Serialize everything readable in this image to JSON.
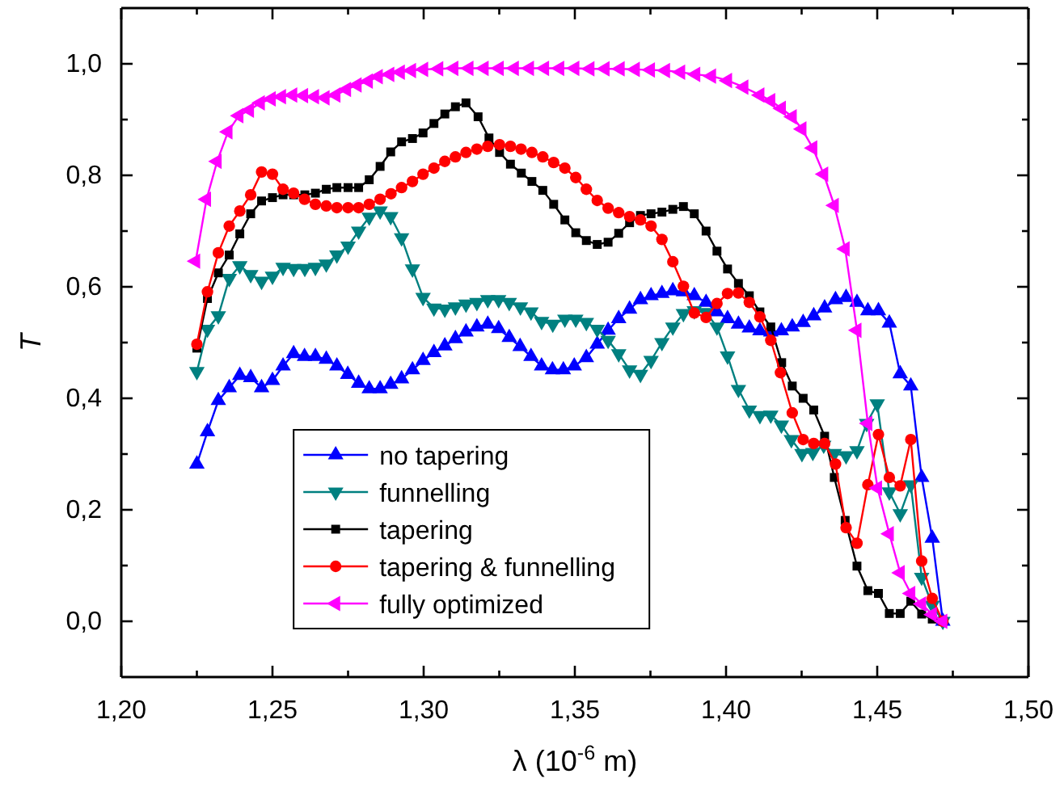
{
  "chart_data": {
    "type": "line",
    "xlabel": "λ  (10$^{-6}$ m)",
    "ylabel": "T",
    "xlim": [
      1.2,
      1.5
    ],
    "ylim": [
      -0.1,
      1.1
    ],
    "xticks": [
      {
        "value": 1.2,
        "label": "1,20"
      },
      {
        "value": 1.225,
        "label": null
      },
      {
        "value": 1.25,
        "label": "1,25"
      },
      {
        "value": 1.275,
        "label": null
      },
      {
        "value": 1.3,
        "label": "1,30"
      },
      {
        "value": 1.325,
        "label": null
      },
      {
        "value": 1.35,
        "label": "1,35"
      },
      {
        "value": 1.375,
        "label": null
      },
      {
        "value": 1.4,
        "label": "1,40"
      },
      {
        "value": 1.425,
        "label": null
      },
      {
        "value": 1.45,
        "label": "1,45"
      },
      {
        "value": 1.475,
        "label": null
      },
      {
        "value": 1.5,
        "label": "1,50"
      }
    ],
    "yticks": [
      {
        "value": 0,
        "label": "0,0"
      },
      {
        "value": 0.1,
        "label": null
      },
      {
        "value": 0.2,
        "label": "0,2"
      },
      {
        "value": 0.3,
        "label": null
      },
      {
        "value": 0.4,
        "label": "0,4"
      },
      {
        "value": 0.5,
        "label": null
      },
      {
        "value": 0.6,
        "label": "0,6"
      },
      {
        "value": 0.7,
        "label": null
      },
      {
        "value": 0.8,
        "label": "0,8"
      },
      {
        "value": 0.9,
        "label": null
      },
      {
        "value": 1.0,
        "label": "1,0"
      }
    ],
    "grid": false,
    "legend": "bottom",
    "line_style": "solid",
    "series": [
      {
        "name": "no tapering",
        "color": "#0000ff",
        "marker": "triangle",
        "x": [
          1.225,
          1.2285,
          1.2321,
          1.2357,
          1.2392,
          1.2428,
          1.2464,
          1.25,
          1.2535,
          1.257,
          1.2606,
          1.2642,
          1.2678,
          1.2713,
          1.2749,
          1.2785,
          1.282,
          1.2856,
          1.2891,
          1.2927,
          1.2963,
          1.2998,
          1.3034,
          1.307,
          1.3105,
          1.314,
          1.3176,
          1.3212,
          1.3248,
          1.3283,
          1.3319,
          1.3355,
          1.339,
          1.3426,
          1.3462,
          1.3498,
          1.3538,
          1.3574,
          1.361,
          1.3645,
          1.3681,
          1.3717,
          1.3752,
          1.3788,
          1.3824,
          1.3859,
          1.3895,
          1.3934,
          1.397,
          1.4005,
          1.4041,
          1.4077,
          1.4112,
          1.4148,
          1.4183,
          1.4219,
          1.4255,
          1.429,
          1.4326,
          1.4362,
          1.4397,
          1.4433,
          1.4469,
          1.4504,
          1.454,
          1.4576,
          1.4611,
          1.4647,
          1.4682,
          1.4717
        ],
        "values": [
          0.282,
          0.34,
          0.396,
          0.419,
          0.441,
          0.437,
          0.419,
          0.432,
          0.458,
          0.48,
          0.475,
          0.475,
          0.47,
          0.458,
          0.443,
          0.427,
          0.417,
          0.417,
          0.425,
          0.435,
          0.451,
          0.468,
          0.482,
          0.494,
          0.507,
          0.519,
          0.528,
          0.533,
          0.525,
          0.509,
          0.493,
          0.475,
          0.458,
          0.451,
          0.451,
          0.458,
          0.473,
          0.497,
          0.522,
          0.543,
          0.56,
          0.577,
          0.584,
          0.588,
          0.593,
          0.591,
          0.584,
          0.572,
          0.555,
          0.543,
          0.533,
          0.526,
          0.521,
          0.519,
          0.521,
          0.528,
          0.536,
          0.548,
          0.562,
          0.577,
          0.581,
          0.572,
          0.557,
          0.557,
          0.535,
          0.444,
          0.422,
          0.258,
          0.149,
          0.0
        ]
      },
      {
        "name": "funnelling",
        "color": "#008080",
        "marker": "triangle-down",
        "x": [
          1.225,
          1.2285,
          1.2321,
          1.2357,
          1.2392,
          1.2428,
          1.2464,
          1.25,
          1.2535,
          1.257,
          1.2607,
          1.2642,
          1.2678,
          1.2713,
          1.275,
          1.2785,
          1.282,
          1.2856,
          1.2891,
          1.2927,
          1.2963,
          1.2998,
          1.3034,
          1.307,
          1.3105,
          1.314,
          1.3176,
          1.3212,
          1.3248,
          1.3283,
          1.332,
          1.3355,
          1.339,
          1.3427,
          1.3467,
          1.3503,
          1.3538,
          1.3574,
          1.361,
          1.3645,
          1.3681,
          1.3717,
          1.3752,
          1.3788,
          1.3824,
          1.3859,
          1.3895,
          1.3934,
          1.397,
          1.4005,
          1.4041,
          1.4077,
          1.4112,
          1.4148,
          1.4183,
          1.4216,
          1.4251,
          1.4287,
          1.4323,
          1.4358,
          1.4397,
          1.4433,
          1.4465,
          1.45,
          1.454,
          1.4576,
          1.4611,
          1.4647,
          1.4682,
          1.4717
        ],
        "values": [
          0.448,
          0.524,
          0.548,
          0.615,
          0.638,
          0.622,
          0.61,
          0.619,
          0.635,
          0.633,
          0.633,
          0.635,
          0.641,
          0.657,
          0.673,
          0.7,
          0.725,
          0.736,
          0.726,
          0.688,
          0.632,
          0.581,
          0.562,
          0.56,
          0.564,
          0.569,
          0.572,
          0.577,
          0.577,
          0.572,
          0.564,
          0.555,
          0.538,
          0.533,
          0.542,
          0.542,
          0.536,
          0.524,
          0.504,
          0.48,
          0.451,
          0.443,
          0.468,
          0.5,
          0.528,
          0.552,
          0.557,
          0.554,
          0.528,
          0.476,
          0.416,
          0.379,
          0.369,
          0.37,
          0.352,
          0.326,
          0.301,
          0.303,
          0.316,
          0.301,
          0.297,
          0.306,
          0.355,
          0.39,
          0.232,
          0.193,
          0.245,
          0.079,
          0.029,
          0.0
        ]
      },
      {
        "name": "tapering",
        "color": "#000000",
        "marker": "square",
        "x": [
          1.225,
          1.2285,
          1.2321,
          1.2357,
          1.2392,
          1.2428,
          1.2464,
          1.25,
          1.2535,
          1.257,
          1.2607,
          1.2642,
          1.2678,
          1.2713,
          1.275,
          1.2785,
          1.282,
          1.2856,
          1.2891,
          1.2927,
          1.2963,
          1.2998,
          1.3034,
          1.307,
          1.3105,
          1.314,
          1.318,
          1.3216,
          1.3251,
          1.3287,
          1.3323,
          1.3358,
          1.3394,
          1.343,
          1.3467,
          1.3503,
          1.3538,
          1.3574,
          1.361,
          1.3645,
          1.3681,
          1.3717,
          1.3752,
          1.3788,
          1.3824,
          1.3859,
          1.3895,
          1.3934,
          1.397,
          1.4005,
          1.4041,
          1.4077,
          1.4112,
          1.4148,
          1.4184,
          1.4219,
          1.4255,
          1.429,
          1.4326,
          1.4358,
          1.4394,
          1.4433,
          1.4469,
          1.4504,
          1.454,
          1.4576,
          1.4611,
          1.4647,
          1.4682,
          1.4717
        ],
        "values": [
          0.49,
          0.579,
          0.625,
          0.657,
          0.695,
          0.731,
          0.754,
          0.76,
          0.765,
          0.765,
          0.765,
          0.768,
          0.775,
          0.778,
          0.778,
          0.778,
          0.792,
          0.816,
          0.842,
          0.86,
          0.866,
          0.876,
          0.893,
          0.91,
          0.923,
          0.93,
          0.905,
          0.867,
          0.841,
          0.82,
          0.804,
          0.789,
          0.773,
          0.748,
          0.72,
          0.697,
          0.683,
          0.676,
          0.68,
          0.696,
          0.715,
          0.728,
          0.731,
          0.734,
          0.739,
          0.744,
          0.731,
          0.7,
          0.664,
          0.632,
          0.606,
          0.584,
          0.555,
          0.528,
          0.464,
          0.422,
          0.4,
          0.379,
          0.332,
          0.258,
          0.181,
          0.099,
          0.055,
          0.05,
          0.014,
          0.014,
          0.036,
          0.013,
          0.004,
          0.0
        ]
      },
      {
        "name": "tapering & funnelling",
        "color": "#ff0000",
        "marker": "circle",
        "x": [
          1.225,
          1.2285,
          1.2321,
          1.2357,
          1.2392,
          1.2428,
          1.2464,
          1.25,
          1.2535,
          1.257,
          1.2606,
          1.2642,
          1.2678,
          1.2713,
          1.275,
          1.2785,
          1.282,
          1.2856,
          1.2892,
          1.2927,
          1.2963,
          1.2998,
          1.3034,
          1.307,
          1.3105,
          1.314,
          1.3176,
          1.3212,
          1.3251,
          1.3287,
          1.3322,
          1.3358,
          1.3394,
          1.343,
          1.3467,
          1.3503,
          1.3538,
          1.3574,
          1.361,
          1.3645,
          1.3681,
          1.3717,
          1.3752,
          1.3788,
          1.3824,
          1.3859,
          1.3895,
          1.3934,
          1.397,
          1.4005,
          1.4041,
          1.4077,
          1.4112,
          1.4148,
          1.418,
          1.4219,
          1.4255,
          1.429,
          1.4326,
          1.4362,
          1.4397,
          1.4433,
          1.4469,
          1.4504,
          1.454,
          1.4576,
          1.4611,
          1.4647,
          1.4682,
          1.4717
        ],
        "values": [
          0.497,
          0.591,
          0.661,
          0.709,
          0.736,
          0.765,
          0.806,
          0.802,
          0.775,
          0.768,
          0.757,
          0.748,
          0.745,
          0.742,
          0.742,
          0.742,
          0.748,
          0.757,
          0.767,
          0.778,
          0.789,
          0.802,
          0.813,
          0.825,
          0.833,
          0.841,
          0.847,
          0.852,
          0.855,
          0.852,
          0.847,
          0.841,
          0.833,
          0.823,
          0.813,
          0.796,
          0.775,
          0.755,
          0.741,
          0.733,
          0.726,
          0.72,
          0.709,
          0.685,
          0.645,
          0.601,
          0.553,
          0.545,
          0.57,
          0.588,
          0.589,
          0.572,
          0.546,
          0.504,
          0.446,
          0.374,
          0.326,
          0.319,
          0.319,
          0.282,
          0.168,
          0.14,
          0.245,
          0.335,
          0.258,
          0.243,
          0.326,
          0.108,
          0.041,
          0.0
        ]
      },
      {
        "name": "fully optimized",
        "color": "#ff00ff",
        "marker": "triangle-left",
        "x": [
          1.2246,
          1.2282,
          1.2317,
          1.2353,
          1.2389,
          1.2424,
          1.246,
          1.2496,
          1.253,
          1.2567,
          1.2603,
          1.2639,
          1.2674,
          1.271,
          1.2745,
          1.278,
          1.2817,
          1.285,
          1.2888,
          1.2923,
          1.296,
          1.3,
          1.305,
          1.31,
          1.315,
          1.32,
          1.325,
          1.33,
          1.335,
          1.34,
          1.345,
          1.35,
          1.355,
          1.36,
          1.365,
          1.37,
          1.375,
          1.38,
          1.385,
          1.39,
          1.3952,
          1.4005,
          1.4059,
          1.4112,
          1.4148,
          1.4183,
          1.4219,
          1.4251,
          1.4287,
          1.4323,
          1.4358,
          1.4394,
          1.4433,
          1.4469,
          1.4501,
          1.454,
          1.4576,
          1.4611,
          1.4647,
          1.4682,
          1.4717
        ],
        "values": [
          0.646,
          0.757,
          0.825,
          0.878,
          0.907,
          0.917,
          0.93,
          0.937,
          0.941,
          0.944,
          0.943,
          0.941,
          0.939,
          0.944,
          0.954,
          0.962,
          0.969,
          0.977,
          0.981,
          0.985,
          0.988,
          0.99,
          0.991,
          0.992,
          0.992,
          0.992,
          0.992,
          0.992,
          0.992,
          0.992,
          0.992,
          0.992,
          0.991,
          0.991,
          0.991,
          0.99,
          0.989,
          0.988,
          0.985,
          0.981,
          0.978,
          0.97,
          0.958,
          0.944,
          0.934,
          0.92,
          0.905,
          0.883,
          0.849,
          0.802,
          0.746,
          0.668,
          0.522,
          0.355,
          0.239,
          0.157,
          0.087,
          0.05,
          0.031,
          0.012,
          0.0
        ]
      }
    ]
  }
}
